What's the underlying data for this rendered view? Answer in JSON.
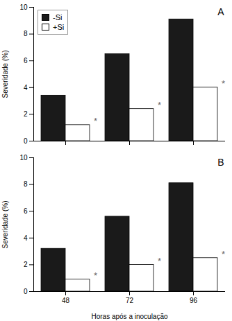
{
  "chart_data": [
    {
      "type": "bar",
      "categories": [
        "48",
        "72",
        "96"
      ],
      "series": [
        {
          "name": "-Si",
          "color": "#1a1a1a",
          "values": [
            3.4,
            6.5,
            9.1
          ]
        },
        {
          "name": "+Si",
          "color": "#ffffff",
          "values": [
            1.2,
            2.4,
            4.0
          ]
        }
      ],
      "ylabel": "Severidade (%)",
      "ylim": [
        0,
        10
      ],
      "yticks": [
        0,
        2,
        4,
        6,
        8,
        10
      ],
      "legend": "upper left",
      "tick_labels": "y",
      "grid": false,
      "annotations": [
        {
          "text": "A"
        },
        {
          "text": "*",
          "series": "+Si",
          "color": "#666666"
        }
      ]
    },
    {
      "type": "bar",
      "categories": [
        "48",
        "72",
        "96"
      ],
      "series": [
        {
          "name": "-Si",
          "color": "#1a1a1a",
          "values": [
            3.2,
            5.6,
            8.1
          ]
        },
        {
          "name": "+Si",
          "color": "#ffffff",
          "values": [
            0.9,
            2.0,
            2.5
          ]
        }
      ],
      "xlabel": "Horas após a inoculação",
      "ylabel": "Severidade (%)",
      "ylim": [
        0,
        10
      ],
      "yticks": [
        0,
        2,
        4,
        6,
        8,
        10
      ],
      "grid": false,
      "annotations": [
        {
          "text": "B"
        },
        {
          "text": "*",
          "series": "+Si",
          "color": "#666666"
        }
      ]
    }
  ]
}
